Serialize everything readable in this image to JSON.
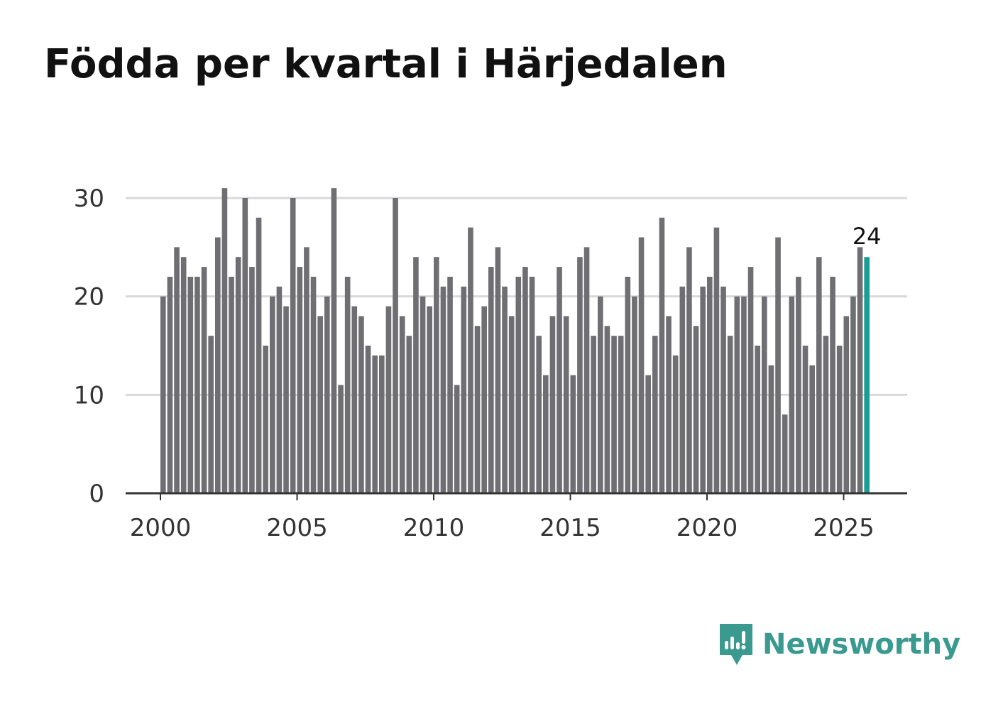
{
  "title": "Födda per kvartal i Härjedalen",
  "brand": {
    "name": "Newsworthy",
    "icon": "newsworthy-logo-icon"
  },
  "colors": {
    "bar": "#6e6e73",
    "highlight": "#1a9e94",
    "grid": "#d9d9d9",
    "axis": "#333333",
    "text": "#333333",
    "brand": "#3a9a8f"
  },
  "chart_data": {
    "type": "bar",
    "title": "Födda per kvartal i Härjedalen",
    "xlabel": "",
    "ylabel": "",
    "ylim": [
      0,
      30
    ],
    "y_ticks": [
      0,
      10,
      20,
      30
    ],
    "x_ticks": [
      2000,
      2005,
      2010,
      2015,
      2020,
      2025
    ],
    "x_start": 2000,
    "quarters_per_year": 4,
    "grid": true,
    "highlight_last": true,
    "last_label": "24",
    "values": [
      20,
      22,
      25,
      24,
      22,
      22,
      23,
      16,
      26,
      31,
      22,
      24,
      30,
      23,
      28,
      15,
      20,
      21,
      19,
      30,
      23,
      25,
      22,
      18,
      20,
      31,
      11,
      22,
      19,
      18,
      15,
      14,
      14,
      19,
      30,
      18,
      16,
      24,
      20,
      19,
      24,
      21,
      22,
      11,
      21,
      27,
      17,
      19,
      23,
      25,
      21,
      18,
      22,
      23,
      22,
      16,
      12,
      18,
      23,
      18,
      12,
      24,
      25,
      16,
      20,
      17,
      16,
      16,
      22,
      20,
      26,
      12,
      16,
      28,
      18,
      14,
      21,
      25,
      17,
      21,
      22,
      27,
      21,
      16,
      20,
      20,
      23,
      15,
      20,
      13,
      26,
      8,
      20,
      22,
      15,
      13,
      24,
      16,
      22,
      15,
      18,
      20,
      25,
      24
    ]
  }
}
